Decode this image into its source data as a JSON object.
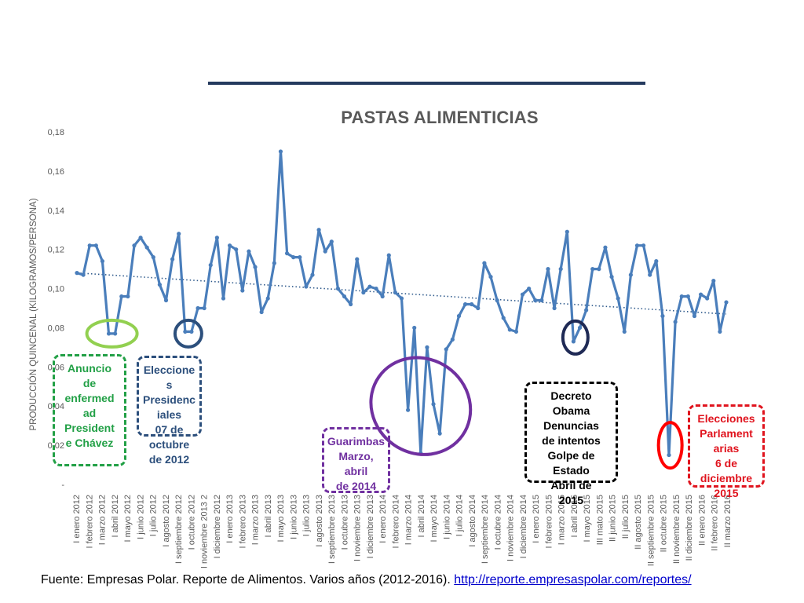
{
  "chart_data": {
    "type": "line",
    "title": "PASTAS ALIMENTICIAS",
    "ylabel": "PRODUCCIÓN QUINCENAL (KILOGRAMOS/PERSONA)",
    "ylim": [
      0,
      0.18
    ],
    "yticks": [
      "-",
      "0,02",
      "0,04",
      "0,06",
      "0,08",
      "0,10",
      "0,12",
      "0,14",
      "0,16",
      "0,18"
    ],
    "x_tick_labels": [
      "I enero 2012",
      "I febrero 2012",
      "I marzo 2012",
      "I abril 2012",
      "I mayo 2012",
      "I junio 2012",
      "I julio 2012",
      "I agosto 2012",
      "I septiembre 2012",
      "I octubre 2012",
      "I noviembre 2013 2",
      "I diciembre 2012",
      "I enero 2013",
      "I febrero 2013",
      "I marzo 2013",
      "I abril 2013",
      "I mayo 2013",
      "I junio 2013",
      "I julio 2013",
      "I agosto 2013",
      "I septiembre 2013",
      "I octubre 2013",
      "I noviembre 2013",
      "I diciembre 2013",
      "I enero 2014",
      "I febrero 2014",
      "I marzo 2014",
      "I abril 2014",
      "I mayo 2014",
      "I junio 2014",
      "I julio 2014",
      "I agosto 2014",
      "I septiembre 2014",
      "I octubre 2014",
      "I noviembre 2014",
      "I diciembre 2014",
      "I enero 2015",
      "I febrero 2015",
      "I marzo 2015",
      "I abril 2015",
      "I mayo 2015",
      "III mato 2015",
      "II junio 2015",
      "II julio 2015",
      "II agosto 2015",
      "II septiembre 2015",
      "II octubre 2015",
      "II noviembre 2015",
      "II diciembre 2015",
      "II enero 2016",
      "II febrero 2016",
      "II marzo 2016"
    ],
    "grid": false,
    "legend": "none",
    "trendline": {
      "style": "dotted",
      "start": 0.108,
      "end": 0.087
    },
    "series": [
      {
        "values": [
          0.108,
          0.107,
          0.122,
          0.122,
          0.114,
          0.077,
          0.077,
          0.096,
          0.096,
          0.122,
          0.126,
          0.121,
          0.116,
          0.102,
          0.094,
          0.115,
          0.128,
          0.078,
          0.078,
          0.09,
          0.09,
          0.112,
          0.126,
          0.095,
          0.122,
          0.12,
          0.099,
          0.119,
          0.111,
          0.088,
          0.095,
          0.113,
          0.17,
          0.118,
          0.116,
          0.116,
          0.101,
          0.107,
          0.13,
          0.119,
          0.124,
          0.1,
          0.096,
          0.092,
          0.115,
          0.098,
          0.101,
          0.1,
          0.096,
          0.117,
          0.098,
          0.095,
          0.038,
          0.08,
          0.016,
          0.07,
          0.041,
          0.026,
          0.069,
          0.074,
          0.086,
          0.092,
          0.092,
          0.09,
          0.113,
          0.106,
          0.094,
          0.085,
          0.079,
          0.078,
          0.097,
          0.1,
          0.094,
          0.094,
          0.11,
          0.09,
          0.11,
          0.129,
          0.073,
          0.08,
          0.089,
          0.11,
          0.11,
          0.121,
          0.106,
          0.095,
          0.078,
          0.107,
          0.122,
          0.122,
          0.107,
          0.114,
          0.086,
          0.015,
          0.083,
          0.096,
          0.096,
          0.086,
          0.097,
          0.095,
          0.104,
          0.078,
          0.093
        ]
      }
    ]
  },
  "annotations": [
    {
      "id": "chavez",
      "text": "Anuncio de enfermedad President e Chávez",
      "color": "#22a046"
    },
    {
      "id": "presidenciales",
      "text": "Elecciones Presidenciales 07 de octubre de 2012",
      "color": "#2c4f7c"
    },
    {
      "id": "guarimbas",
      "text": "Guarimbas Marzo, abril de 2014",
      "color": "#7030a0"
    },
    {
      "id": "obama",
      "text": "Decreto Obama Denuncias de intentos Golpe de Estado Abril de 2015",
      "color": "#000000"
    },
    {
      "id": "parlamentarias",
      "text": "Elecciones Parlamentarias 6 de diciembre 2015",
      "color": "#e0141e"
    }
  ],
  "annotation_lines": {
    "chavez": [
      "Anuncio",
      "de",
      "enfermed",
      "ad",
      "President",
      "e Chávez"
    ],
    "presidenciales": [
      "Eleccione",
      "s",
      "Presidenc",
      "iales",
      "07 de",
      "octubre",
      "de 2012"
    ],
    "guarimbas": [
      "Guarimbas",
      "Marzo, abril",
      "de 2014"
    ],
    "obama": [
      "Decreto",
      "Obama",
      "Denuncias",
      "de intentos",
      "Golpe de",
      "Estado",
      "Abril de",
      "2015"
    ],
    "parlamentarias": [
      "Elecciones",
      "Parlament",
      "arias",
      "6 de",
      "diciembre",
      "2015"
    ]
  },
  "footer": {
    "source": "Fuente: Empresas Polar. Reporte de Alimentos. Varios años (2012-2016).",
    "link": "http://reporte.empresaspolar.com/reportes/"
  },
  "colors": {
    "series": "#4a7ebb",
    "trend": "#2f5a8c",
    "title": "#595959"
  }
}
